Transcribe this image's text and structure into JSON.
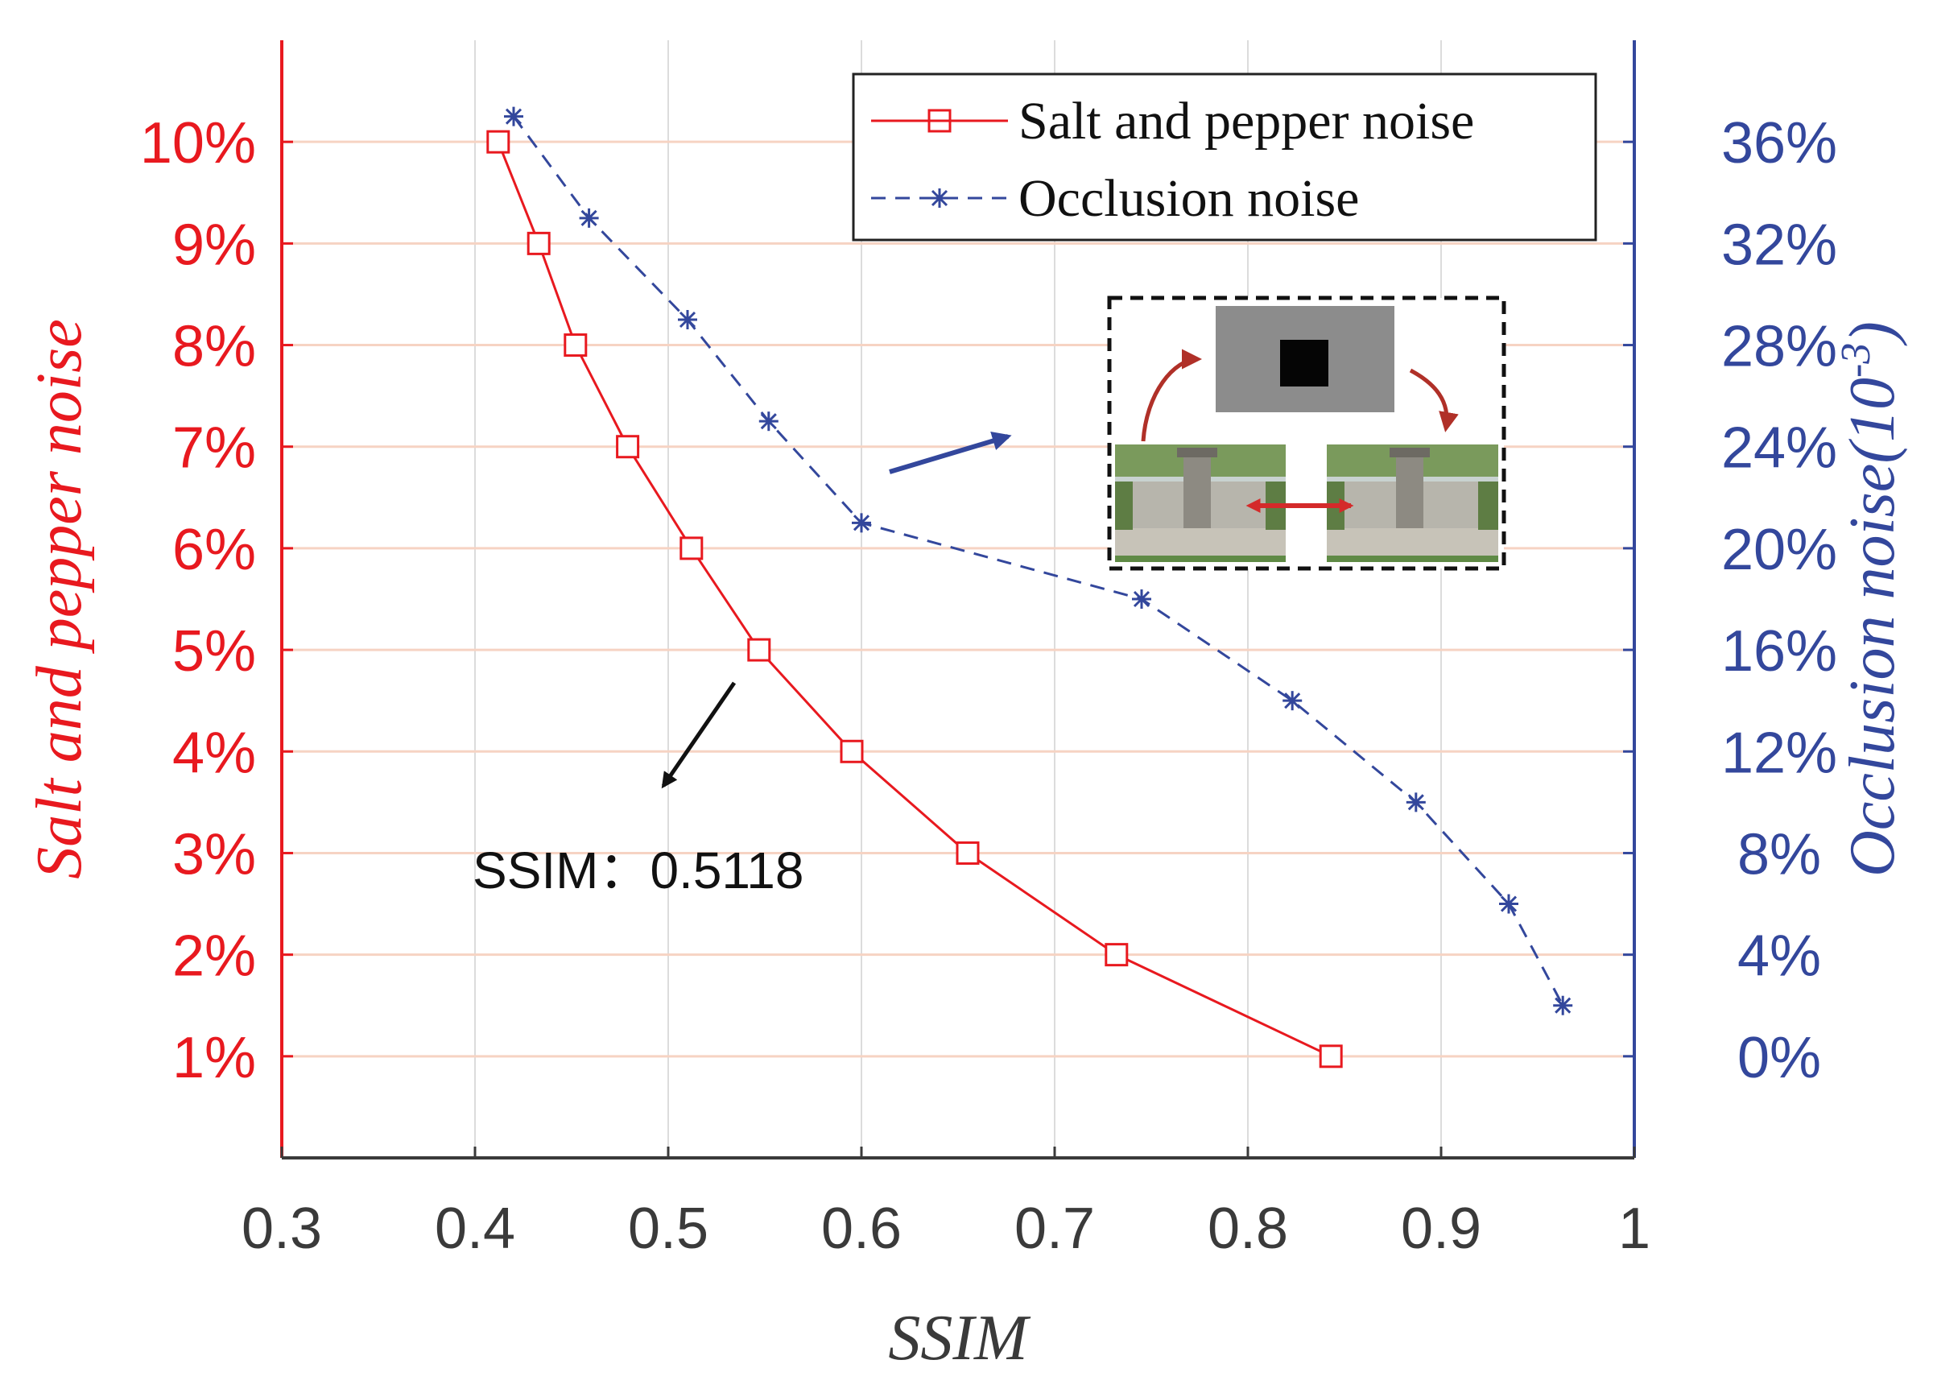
{
  "chart_data": {
    "type": "line",
    "xlabel": "SSIM",
    "xlim": [
      0.3,
      1
    ],
    "x_ticks": [
      "0.3",
      "0.4",
      "0.5",
      "0.6",
      "0.7",
      "0.8",
      "0.9",
      "1"
    ],
    "x_tick_values": [
      0.3,
      0.4,
      0.5,
      0.6,
      0.7,
      0.8,
      0.9,
      1.0
    ],
    "y_left": {
      "label": "Salt and pepper noise",
      "range": [
        0,
        11
      ],
      "ticks": [
        "1%",
        "2%",
        "3%",
        "4%",
        "5%",
        "6%",
        "7%",
        "8%",
        "9%",
        "10%"
      ],
      "tick_values": [
        1,
        2,
        3,
        4,
        5,
        6,
        7,
        8,
        9,
        10
      ],
      "color": "#e8191f"
    },
    "y_right": {
      "label": "Occlusion noise(10",
      "label_superscript": "-3",
      "label_suffix": ")",
      "range": [
        -4,
        40
      ],
      "ticks": [
        "0%",
        "4%",
        "8%",
        "12%",
        "16%",
        "20%",
        "24%",
        "28%",
        "32%",
        "36%"
      ],
      "tick_values": [
        0,
        4,
        8,
        12,
        16,
        20,
        24,
        28,
        32,
        36
      ],
      "color": "#33479c"
    },
    "grid": true,
    "legend_position": "top-right",
    "series": [
      {
        "name": "Salt and pepper noise",
        "axis": "left",
        "color": "#e8191f",
        "marker": "square",
        "line": "solid",
        "x": [
          0.412,
          0.433,
          0.452,
          0.479,
          0.512,
          0.547,
          0.595,
          0.655,
          0.732,
          0.843
        ],
        "y": [
          10,
          9,
          8,
          7,
          6,
          5,
          4,
          3,
          2,
          1
        ]
      },
      {
        "name": "Occlusion noise",
        "axis": "right",
        "color": "#33479c",
        "marker": "asterisk",
        "line": "dashed",
        "x": [
          0.42,
          0.459,
          0.51,
          0.552,
          0.6,
          0.745,
          0.823,
          0.887,
          0.935,
          0.963
        ],
        "y": [
          37,
          33,
          29,
          25,
          21,
          18,
          14,
          10,
          6,
          2
        ]
      }
    ],
    "annotations": [
      {
        "text": "SSIM：0.5118"
      }
    ]
  },
  "inset": {
    "description_icon": "image-pair-occlusion-icon"
  }
}
